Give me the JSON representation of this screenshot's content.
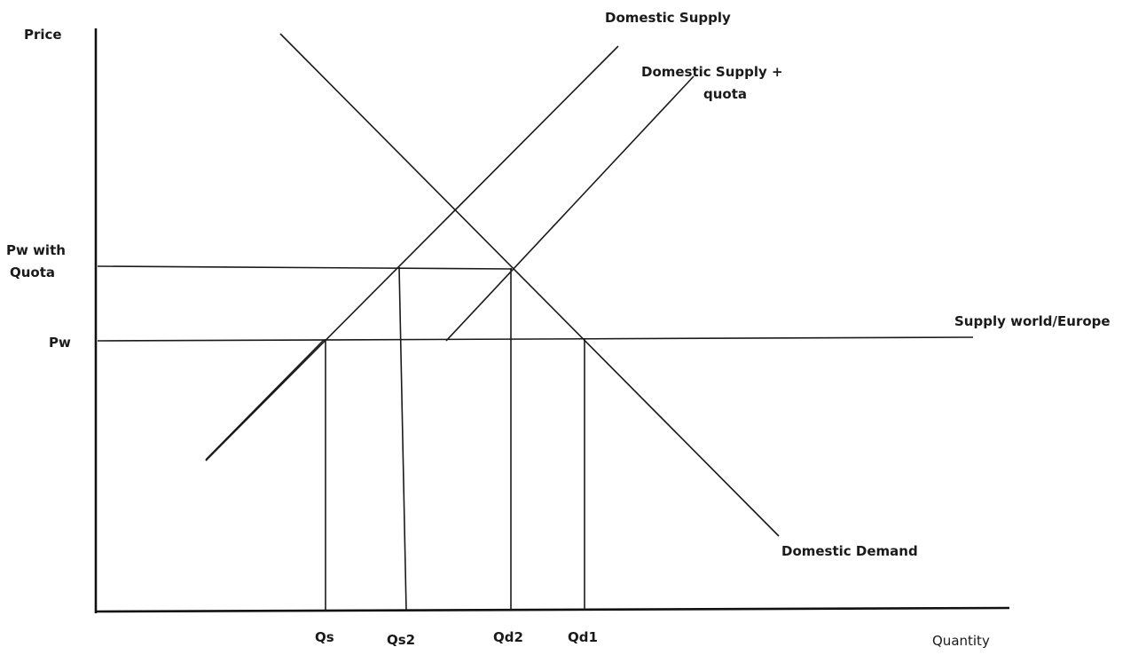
{
  "axes": {
    "y_label": "Price",
    "x_label": "Quantity"
  },
  "price_labels": {
    "pw_quota_line1": "Pw with",
    "pw_quota_line2": "Quota",
    "pw": "Pw"
  },
  "quantity_labels": {
    "qs": "Qs",
    "qs2": "Qs2",
    "qd2": "Qd2",
    "qd1": "Qd1"
  },
  "curve_labels": {
    "domestic_supply": "Domestic Supply",
    "domestic_supply_quota_line1": "Domestic Supply +",
    "domestic_supply_quota_line2": "quota",
    "world_supply": "Supply world/Europe",
    "domestic_demand": "Domestic Demand"
  }
}
